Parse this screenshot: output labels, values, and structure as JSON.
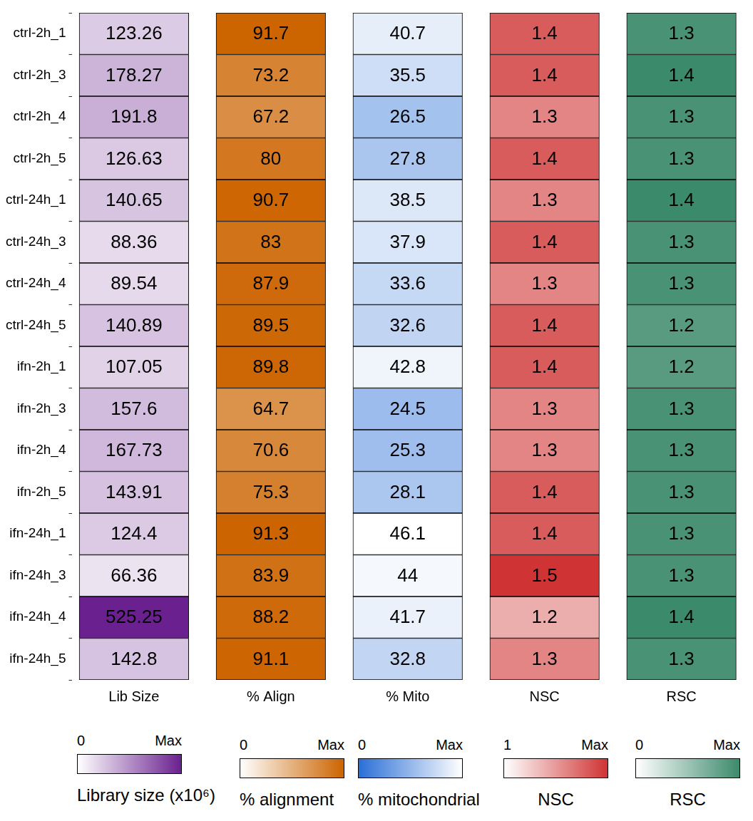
{
  "chart_data": {
    "type": "heatmap",
    "data_labels": true,
    "categories": [
      "ctrl-2h_1",
      "ctrl-2h_3",
      "ctrl-2h_4",
      "ctrl-2h_5",
      "ctrl-24h_1",
      "ctrl-24h_3",
      "ctrl-24h_4",
      "ctrl-24h_5",
      "ifn-2h_1",
      "ifn-2h_3",
      "ifn-2h_4",
      "ifn-2h_5",
      "ifn-24h_1",
      "ifn-24h_3",
      "ifn-24h_4",
      "ifn-24h_5"
    ],
    "series": [
      {
        "name": "Lib Size",
        "values": [
          123.26,
          178.27,
          191.8,
          126.63,
          140.65,
          88.36,
          89.54,
          140.89,
          107.05,
          157.6,
          167.73,
          143.91,
          124.4,
          66.36,
          525.25,
          142.8
        ],
        "colorbar": {
          "title": "Library size (x10⁶)",
          "range": [
            0,
            525.25
          ],
          "ticks": [
            0,
            {
              "value": 525.25,
              "label": "Max"
            }
          ],
          "colors": [
            "#ffffff",
            "#6a218f"
          ]
        }
      },
      {
        "name": "% Align",
        "values": [
          91.7,
          73.2,
          67.2,
          80,
          90.7,
          83,
          87.9,
          89.5,
          89.8,
          64.7,
          70.6,
          75.3,
          91.3,
          83.9,
          88.2,
          91.1
        ],
        "colorbar": {
          "title": "% alignment",
          "range": [
            0,
            91.7
          ],
          "ticks": [
            0,
            {
              "value": 91.7,
              "label": "Max"
            }
          ],
          "colors": [
            "#ffffff",
            "#cc6400"
          ]
        }
      },
      {
        "name": "% Mito",
        "values": [
          40.7,
          35.5,
          26.5,
          27.8,
          38.5,
          37.9,
          33.6,
          32.6,
          42.8,
          24.5,
          25.3,
          28.1,
          46.1,
          44,
          41.7,
          32.8
        ],
        "colorbar": {
          "title": "% mitochondrial",
          "range": [
            0,
            46.1
          ],
          "ticks": [
            0,
            {
              "value": 46.1,
              "label": "Max"
            }
          ],
          "colors": [
            "#2a6fd6",
            "#ffffff"
          ]
        }
      },
      {
        "name": "NSC",
        "values": [
          1.4,
          1.4,
          1.3,
          1.4,
          1.3,
          1.4,
          1.3,
          1.4,
          1.4,
          1.3,
          1.3,
          1.4,
          1.4,
          1.5,
          1.2,
          1.3
        ],
        "colorbar": {
          "title": "NSC",
          "range": [
            1,
            1.5
          ],
          "ticks": [
            1,
            {
              "value": 1.5,
              "label": "Max"
            }
          ],
          "colors": [
            "#ffffff",
            "#d03333"
          ]
        }
      },
      {
        "name": "RSC",
        "values": [
          1.3,
          1.4,
          1.3,
          1.3,
          1.4,
          1.3,
          1.3,
          1.2,
          1.2,
          1.3,
          1.3,
          1.3,
          1.3,
          1.3,
          1.4,
          1.3
        ],
        "colorbar": {
          "title": "RSC",
          "range": [
            0,
            1.4
          ],
          "ticks": [
            0,
            {
              "value": 1.4,
              "label": "Max"
            }
          ],
          "colors": [
            "#ffffff",
            "#3c8a6c"
          ]
        }
      }
    ]
  }
}
